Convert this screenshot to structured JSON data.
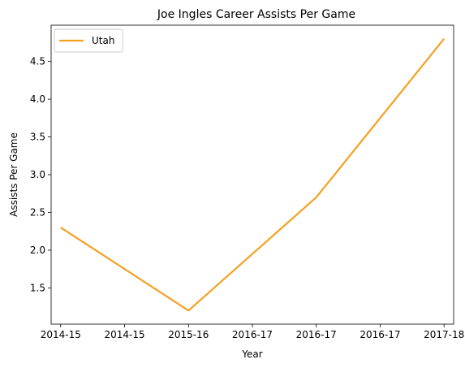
{
  "chart_data": {
    "type": "line",
    "title": "Joe Ingles Career Assists Per Game",
    "xlabel": "Year",
    "ylabel": "Assists Per Game",
    "x_tick_labels": [
      "2014-15",
      "2014-15",
      "2015-16",
      "2016-17",
      "2016-17",
      "2016-17",
      "2017-18"
    ],
    "x_range": [
      -0.15,
      6.15
    ],
    "y_ticks": [
      "1.5",
      "2.0",
      "2.5",
      "3.0",
      "3.5",
      "4.0",
      "4.5"
    ],
    "ylim": [
      1.02,
      4.98
    ],
    "series": [
      {
        "name": "Utah",
        "color": "#f5a01f",
        "points": [
          {
            "x": 0,
            "y": 2.3
          },
          {
            "x": 2,
            "y": 1.2
          },
          {
            "x": 4,
            "y": 2.7
          },
          {
            "x": 6,
            "y": 4.8
          }
        ]
      }
    ],
    "legend_position": "upper-left",
    "grid": false
  }
}
